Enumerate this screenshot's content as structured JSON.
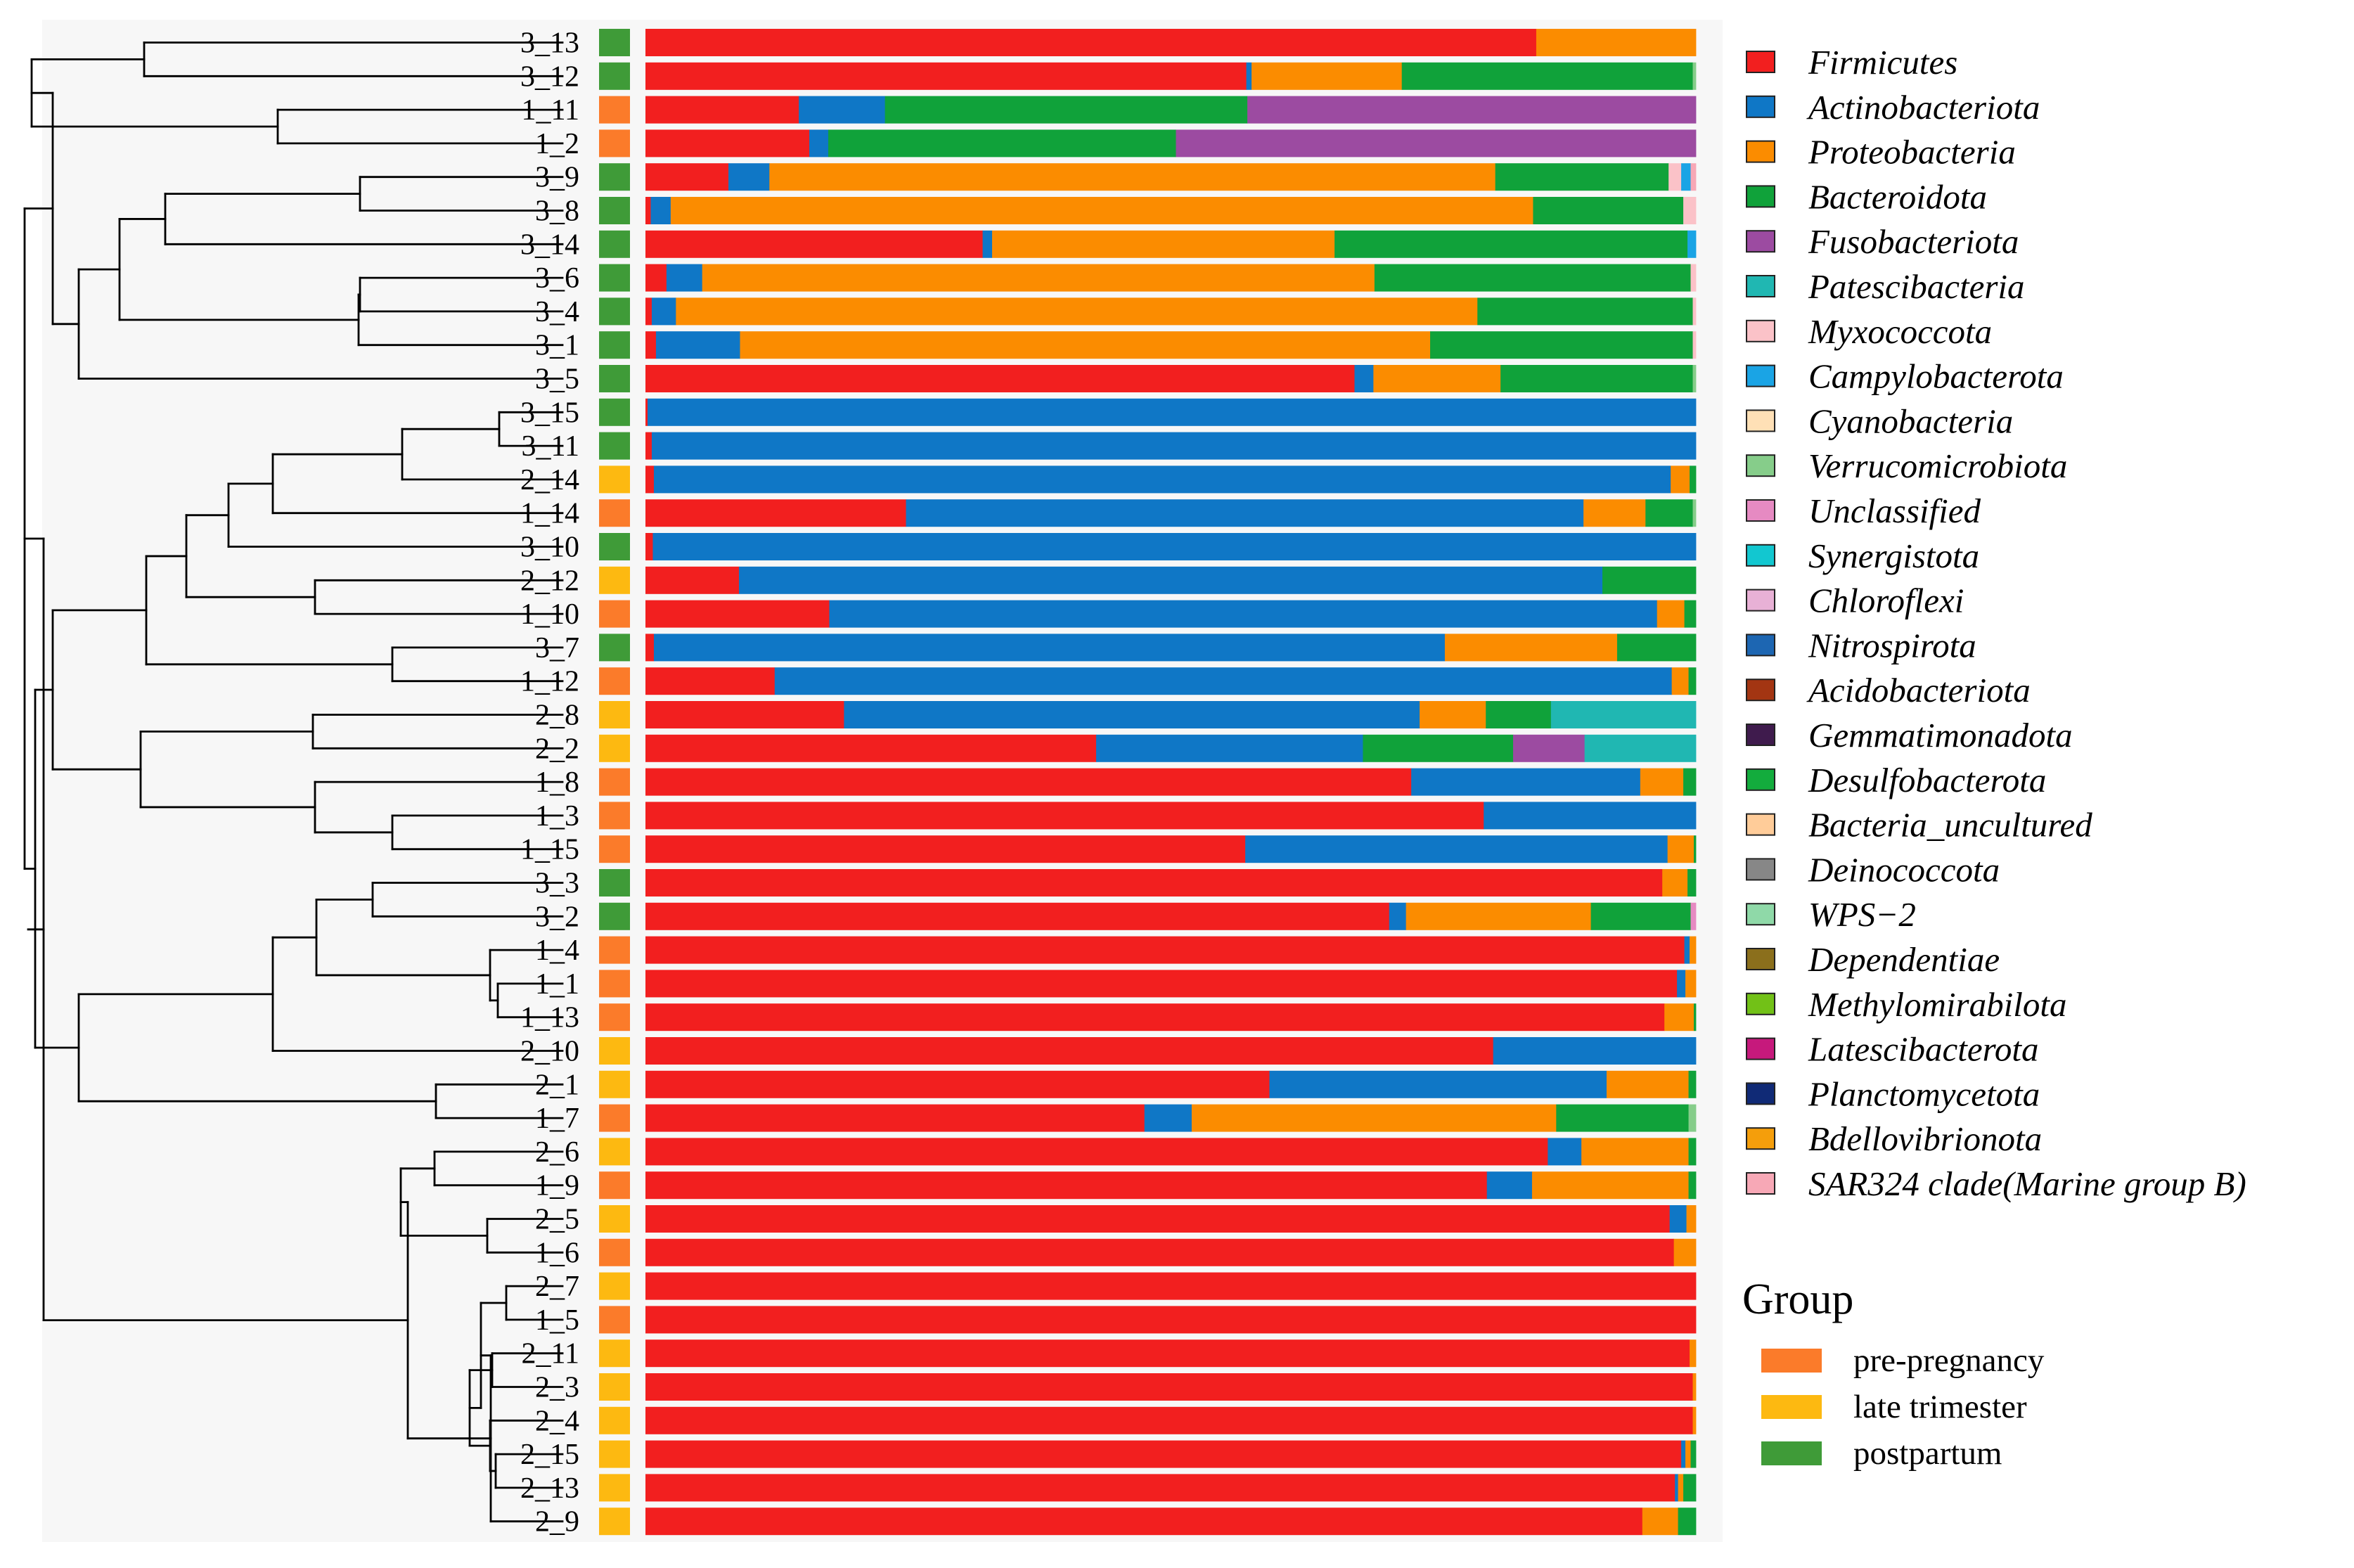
{
  "chart_data": {
    "type": "stacked-bar-with-dendrogram",
    "orientation": "horizontal",
    "value_scale": "relative abundance (fraction of 1.0)",
    "samples": [
      "3_13",
      "3_12",
      "1_11",
      "1_2",
      "3_9",
      "3_8",
      "3_14",
      "3_6",
      "3_4",
      "3_1",
      "3_5",
      "3_15",
      "3_11",
      "2_14",
      "1_14",
      "3_10",
      "2_12",
      "1_10",
      "3_7",
      "1_12",
      "2_8",
      "2_2",
      "1_8",
      "1_3",
      "1_15",
      "3_3",
      "3_2",
      "1_4",
      "1_1",
      "1_13",
      "2_10",
      "2_1",
      "1_7",
      "2_6",
      "1_9",
      "2_5",
      "1_6",
      "2_7",
      "1_5",
      "2_11",
      "2_3",
      "2_4",
      "2_15",
      "2_13",
      "2_9"
    ],
    "sample_groups": [
      "postpartum",
      "postpartum",
      "pre-pregnancy",
      "pre-pregnancy",
      "postpartum",
      "postpartum",
      "postpartum",
      "postpartum",
      "postpartum",
      "postpartum",
      "postpartum",
      "postpartum",
      "postpartum",
      "late trimester",
      "pre-pregnancy",
      "postpartum",
      "late trimester",
      "pre-pregnancy",
      "postpartum",
      "pre-pregnancy",
      "late trimester",
      "late trimester",
      "pre-pregnancy",
      "pre-pregnancy",
      "pre-pregnancy",
      "postpartum",
      "postpartum",
      "pre-pregnancy",
      "pre-pregnancy",
      "pre-pregnancy",
      "late trimester",
      "late trimester",
      "pre-pregnancy",
      "late trimester",
      "pre-pregnancy",
      "late trimester",
      "pre-pregnancy",
      "late trimester",
      "pre-pregnancy",
      "late trimester",
      "late trimester",
      "late trimester",
      "late trimester",
      "late trimester",
      "late trimester"
    ],
    "phyla": [
      {
        "name": "Firmicutes",
        "color": "#f21f1f"
      },
      {
        "name": "Actinobacteriota",
        "color": "#0f77c6"
      },
      {
        "name": "Proteobacteria",
        "color": "#fb8c00"
      },
      {
        "name": "Bacteroidota",
        "color": "#10a23a"
      },
      {
        "name": "Fusobacteriota",
        "color": "#9c4ba1"
      },
      {
        "name": "Patescibacteria",
        "color": "#20b7b2"
      },
      {
        "name": "Myxococcota",
        "color": "#fbc2c8"
      },
      {
        "name": "Campylobacterota",
        "color": "#1aa4e5"
      },
      {
        "name": "Cyanobacteria",
        "color": "#ffe0b6"
      },
      {
        "name": "Verrucomicrobiota",
        "color": "#86cd8a"
      },
      {
        "name": "Unclassified",
        "color": "#e68ac2"
      },
      {
        "name": "Synergistota",
        "color": "#12c7d0"
      },
      {
        "name": "Chloroflexi",
        "color": "#e8b1d6"
      },
      {
        "name": "Nitrospirota",
        "color": "#1d66b2"
      },
      {
        "name": "Acidobacteriota",
        "color": "#a33512"
      },
      {
        "name": "Gemmatimonadota",
        "color": "#3f1b4d"
      },
      {
        "name": "Desulfobacterota",
        "color": "#13ac3d"
      },
      {
        "name": "Bacteria_uncultured",
        "color": "#ffcc99"
      },
      {
        "name": "Deinococcota",
        "color": "#878787"
      },
      {
        "name": "WPS−2",
        "color": "#8fd9a8"
      },
      {
        "name": "Dependentiae",
        "color": "#8b6f1c"
      },
      {
        "name": "Methylomirabilota",
        "color": "#72c117"
      },
      {
        "name": "Latescibacterota",
        "color": "#c6197c"
      },
      {
        "name": "Planctomycetota",
        "color": "#102a76"
      },
      {
        "name": "Bdellovibrionota",
        "color": "#f59e0b"
      },
      {
        "name": "SAR324 clade(Marine group B)",
        "color": "#f7a8b6"
      }
    ],
    "values": [
      [
        0.848,
        0,
        0.152,
        0,
        0,
        0,
        0,
        0,
        0,
        0,
        0,
        0,
        0,
        0,
        0,
        0,
        0,
        0,
        0,
        0,
        0,
        0,
        0,
        0,
        0,
        0
      ],
      [
        0.572,
        0.005,
        0.143,
        0.277,
        0,
        0,
        0,
        0,
        0,
        0.003,
        0,
        0,
        0,
        0,
        0,
        0,
        0,
        0,
        0,
        0,
        0,
        0,
        0,
        0,
        0,
        0
      ],
      [
        0.146,
        0.082,
        0,
        0.345,
        0.427,
        0,
        0,
        0,
        0,
        0,
        0,
        0,
        0,
        0,
        0,
        0,
        0,
        0,
        0,
        0,
        0,
        0,
        0,
        0,
        0,
        0
      ],
      [
        0.156,
        0.018,
        0,
        0.331,
        0.495,
        0,
        0,
        0,
        0,
        0,
        0,
        0,
        0,
        0,
        0,
        0,
        0,
        0,
        0,
        0,
        0,
        0,
        0,
        0,
        0,
        0
      ],
      [
        0.079,
        0.039,
        0.691,
        0.165,
        0,
        0,
        0.012,
        0.009,
        0,
        0,
        0,
        0,
        0,
        0,
        0,
        0,
        0,
        0,
        0,
        0,
        0,
        0,
        0,
        0,
        0,
        0.005
      ],
      [
        0.005,
        0.019,
        0.821,
        0.143,
        0,
        0,
        0.012,
        0,
        0,
        0,
        0,
        0,
        0,
        0,
        0,
        0,
        0,
        0,
        0,
        0,
        0,
        0,
        0,
        0,
        0,
        0
      ],
      [
        0.321,
        0.009,
        0.326,
        0.336,
        0,
        0,
        0,
        0.008,
        0,
        0,
        0,
        0,
        0,
        0,
        0,
        0,
        0,
        0,
        0,
        0,
        0,
        0,
        0,
        0,
        0,
        0
      ],
      [
        0.02,
        0.034,
        0.64,
        0.301,
        0,
        0,
        0.005,
        0,
        0,
        0,
        0,
        0,
        0,
        0,
        0,
        0,
        0,
        0,
        0,
        0,
        0,
        0,
        0,
        0,
        0,
        0
      ],
      [
        0.006,
        0.023,
        0.763,
        0.205,
        0,
        0,
        0.003,
        0,
        0,
        0,
        0,
        0,
        0,
        0,
        0,
        0,
        0,
        0,
        0,
        0,
        0,
        0,
        0,
        0,
        0,
        0
      ],
      [
        0.01,
        0.08,
        0.657,
        0.25,
        0,
        0,
        0.003,
        0,
        0,
        0,
        0,
        0,
        0,
        0,
        0,
        0,
        0,
        0,
        0,
        0,
        0,
        0,
        0,
        0,
        0,
        0
      ],
      [
        0.675,
        0.018,
        0.121,
        0.183,
        0,
        0,
        0,
        0,
        0,
        0.003,
        0,
        0,
        0,
        0,
        0,
        0,
        0,
        0,
        0,
        0,
        0,
        0,
        0,
        0,
        0,
        0
      ],
      [
        0.002,
        0.998,
        0,
        0,
        0,
        0,
        0,
        0,
        0,
        0,
        0,
        0,
        0,
        0,
        0,
        0,
        0,
        0,
        0,
        0,
        0,
        0,
        0,
        0,
        0,
        0
      ],
      [
        0.006,
        0.994,
        0,
        0,
        0,
        0,
        0,
        0,
        0,
        0,
        0,
        0,
        0,
        0,
        0,
        0,
        0,
        0,
        0,
        0,
        0,
        0,
        0,
        0,
        0,
        0
      ],
      [
        0.008,
        0.968,
        0.018,
        0.006,
        0,
        0,
        0,
        0,
        0,
        0,
        0,
        0,
        0,
        0,
        0,
        0,
        0,
        0,
        0,
        0,
        0,
        0,
        0,
        0,
        0,
        0
      ],
      [
        0.248,
        0.645,
        0.059,
        0.045,
        0,
        0,
        0,
        0,
        0,
        0.003,
        0,
        0,
        0,
        0,
        0,
        0,
        0,
        0,
        0,
        0,
        0,
        0,
        0,
        0,
        0,
        0
      ],
      [
        0.007,
        0.993,
        0,
        0,
        0,
        0,
        0,
        0,
        0,
        0,
        0,
        0,
        0,
        0,
        0,
        0,
        0,
        0,
        0,
        0,
        0,
        0,
        0,
        0,
        0,
        0
      ],
      [
        0.089,
        0.822,
        0,
        0.089,
        0,
        0,
        0,
        0,
        0,
        0,
        0,
        0,
        0,
        0,
        0,
        0,
        0,
        0,
        0,
        0,
        0,
        0,
        0,
        0,
        0,
        0
      ],
      [
        0.175,
        0.788,
        0.026,
        0.011,
        0,
        0,
        0,
        0,
        0,
        0,
        0,
        0,
        0,
        0,
        0,
        0,
        0,
        0,
        0,
        0,
        0,
        0,
        0,
        0,
        0,
        0
      ],
      [
        0.008,
        0.753,
        0.164,
        0.075,
        0,
        0,
        0,
        0,
        0,
        0,
        0,
        0,
        0,
        0,
        0,
        0,
        0,
        0,
        0,
        0,
        0,
        0,
        0,
        0,
        0,
        0
      ],
      [
        0.123,
        0.854,
        0.016,
        0.007,
        0,
        0,
        0,
        0,
        0,
        0,
        0,
        0,
        0,
        0,
        0,
        0,
        0,
        0,
        0,
        0,
        0,
        0,
        0,
        0,
        0,
        0
      ],
      [
        0.189,
        0.548,
        0.063,
        0.062,
        0,
        0.138,
        0,
        0,
        0,
        0,
        0,
        0,
        0,
        0,
        0,
        0,
        0,
        0,
        0,
        0,
        0,
        0,
        0,
        0,
        0,
        0
      ],
      [
        0.429,
        0.254,
        0,
        0.143,
        0.068,
        0.106,
        0,
        0,
        0,
        0,
        0,
        0,
        0,
        0,
        0,
        0,
        0,
        0,
        0,
        0,
        0,
        0,
        0,
        0,
        0,
        0
      ],
      [
        0.729,
        0.218,
        0.041,
        0.012,
        0,
        0,
        0,
        0,
        0,
        0,
        0,
        0,
        0,
        0,
        0,
        0,
        0,
        0,
        0,
        0,
        0,
        0,
        0,
        0,
        0,
        0
      ],
      [
        0.798,
        0.202,
        0,
        0,
        0,
        0,
        0,
        0,
        0,
        0,
        0,
        0,
        0,
        0,
        0,
        0,
        0,
        0,
        0,
        0,
        0,
        0,
        0,
        0,
        0,
        0
      ],
      [
        0.571,
        0.402,
        0.025,
        0.002,
        0,
        0,
        0,
        0,
        0,
        0,
        0,
        0,
        0,
        0,
        0,
        0,
        0,
        0,
        0,
        0,
        0,
        0,
        0,
        0,
        0,
        0
      ],
      [
        0.968,
        0,
        0.024,
        0.008,
        0,
        0,
        0,
        0,
        0,
        0,
        0,
        0,
        0,
        0,
        0,
        0,
        0,
        0,
        0,
        0,
        0,
        0,
        0,
        0,
        0,
        0
      ],
      [
        0.708,
        0.016,
        0.176,
        0.095,
        0,
        0,
        0,
        0,
        0,
        0,
        0.005,
        0,
        0,
        0,
        0,
        0,
        0,
        0,
        0,
        0,
        0,
        0,
        0,
        0,
        0,
        0
      ],
      [
        0.989,
        0.005,
        0.006,
        0,
        0,
        0,
        0,
        0,
        0,
        0,
        0,
        0,
        0,
        0,
        0,
        0,
        0,
        0,
        0,
        0,
        0,
        0,
        0,
        0,
        0,
        0
      ],
      [
        0.982,
        0.008,
        0.01,
        0,
        0,
        0,
        0,
        0,
        0,
        0,
        0,
        0,
        0,
        0,
        0,
        0,
        0,
        0,
        0,
        0,
        0,
        0,
        0,
        0,
        0,
        0
      ],
      [
        0.97,
        0,
        0.028,
        0.002,
        0,
        0,
        0,
        0,
        0,
        0,
        0,
        0,
        0,
        0,
        0,
        0,
        0,
        0,
        0,
        0,
        0,
        0,
        0,
        0,
        0,
        0
      ],
      [
        0.807,
        0.193,
        0,
        0,
        0,
        0,
        0,
        0,
        0,
        0,
        0,
        0,
        0,
        0,
        0,
        0,
        0,
        0,
        0,
        0,
        0,
        0,
        0,
        0,
        0,
        0
      ],
      [
        0.594,
        0.321,
        0.078,
        0.007,
        0,
        0,
        0,
        0,
        0,
        0,
        0,
        0,
        0,
        0,
        0,
        0,
        0,
        0,
        0,
        0,
        0,
        0,
        0,
        0,
        0,
        0
      ],
      [
        0.475,
        0.045,
        0.347,
        0.126,
        0,
        0,
        0,
        0,
        0,
        0.007,
        0,
        0,
        0,
        0,
        0,
        0,
        0,
        0,
        0,
        0,
        0,
        0,
        0,
        0,
        0,
        0
      ],
      [
        0.859,
        0.032,
        0.102,
        0.007,
        0,
        0,
        0,
        0,
        0,
        0,
        0,
        0,
        0,
        0,
        0,
        0,
        0,
        0,
        0,
        0,
        0,
        0,
        0,
        0,
        0,
        0
      ],
      [
        0.801,
        0.043,
        0.149,
        0.007,
        0,
        0,
        0,
        0,
        0,
        0,
        0,
        0,
        0,
        0,
        0,
        0,
        0,
        0,
        0,
        0,
        0,
        0,
        0,
        0,
        0,
        0
      ],
      [
        0.975,
        0.016,
        0.009,
        0,
        0,
        0,
        0,
        0,
        0,
        0,
        0,
        0,
        0,
        0,
        0,
        0,
        0,
        0,
        0,
        0,
        0,
        0,
        0,
        0,
        0,
        0
      ],
      [
        0.979,
        0,
        0.021,
        0,
        0,
        0,
        0,
        0,
        0,
        0,
        0,
        0,
        0,
        0,
        0,
        0,
        0,
        0,
        0,
        0,
        0,
        0,
        0,
        0,
        0,
        0
      ],
      [
        1.0,
        0,
        0,
        0,
        0,
        0,
        0,
        0,
        0,
        0,
        0,
        0,
        0,
        0,
        0,
        0,
        0,
        0,
        0,
        0,
        0,
        0,
        0,
        0,
        0,
        0
      ],
      [
        1.0,
        0,
        0,
        0,
        0,
        0,
        0,
        0,
        0,
        0,
        0,
        0,
        0,
        0,
        0,
        0,
        0,
        0,
        0,
        0,
        0,
        0,
        0,
        0,
        0,
        0
      ],
      [
        0.994,
        0,
        0.006,
        0,
        0,
        0,
        0,
        0,
        0,
        0,
        0,
        0,
        0,
        0,
        0,
        0,
        0,
        0,
        0,
        0,
        0,
        0,
        0,
        0,
        0,
        0
      ],
      [
        0.997,
        0,
        0.003,
        0,
        0,
        0,
        0,
        0,
        0,
        0,
        0,
        0,
        0,
        0,
        0,
        0,
        0,
        0,
        0,
        0,
        0,
        0,
        0,
        0,
        0,
        0
      ],
      [
        0.997,
        0,
        0.003,
        0,
        0,
        0,
        0,
        0,
        0,
        0,
        0,
        0,
        0,
        0,
        0,
        0,
        0,
        0,
        0,
        0,
        0,
        0,
        0,
        0,
        0,
        0
      ],
      [
        0.986,
        0.004,
        0.005,
        0.005,
        0,
        0,
        0,
        0,
        0,
        0,
        0,
        0,
        0,
        0,
        0,
        0,
        0,
        0,
        0,
        0,
        0,
        0,
        0,
        0,
        0,
        0
      ],
      [
        0.98,
        0.003,
        0.005,
        0.012,
        0,
        0,
        0,
        0,
        0,
        0,
        0,
        0,
        0,
        0,
        0,
        0,
        0,
        0,
        0,
        0,
        0,
        0,
        0,
        0,
        0,
        0
      ],
      [
        0.949,
        0,
        0.034,
        0.017,
        0,
        0,
        0,
        0,
        0,
        0,
        0,
        0,
        0,
        0,
        0,
        0,
        0,
        0,
        0,
        0,
        0,
        0,
        0,
        0,
        0,
        0
      ]
    ],
    "dendrogram": {
      "leaves_top_to_bottom": true,
      "newick": "(((((3_13,3_12),(1_11,1_2)),((((3_9,3_8),3_14),((3_6,3_4),3_1)),3_5)),(((((((3_15,3_11),2_14),1_14),3_10),(2_12,1_10)),(3_7,1_12)),((2_8,2_2),(1_8,(1_3,1_15)))),((((3_3,3_2),((1_4,(1_1,1_13))),2_10),(2_1,1_7)))),(((2_6,1_9),(2_5,1_6)),((2_7,1_5),((2_11,2_3),(2_4,(2_15,2_13)))),2_9))"
    },
    "legend": {
      "placement": "right",
      "title": ""
    },
    "group_legend": {
      "title": "Group",
      "items": [
        {
          "name": "pre-pregnancy",
          "color": "#fb7b2a"
        },
        {
          "name": "late trimester",
          "color": "#fdb911"
        },
        {
          "name": "postpartum",
          "color": "#3f9b38"
        }
      ]
    }
  }
}
